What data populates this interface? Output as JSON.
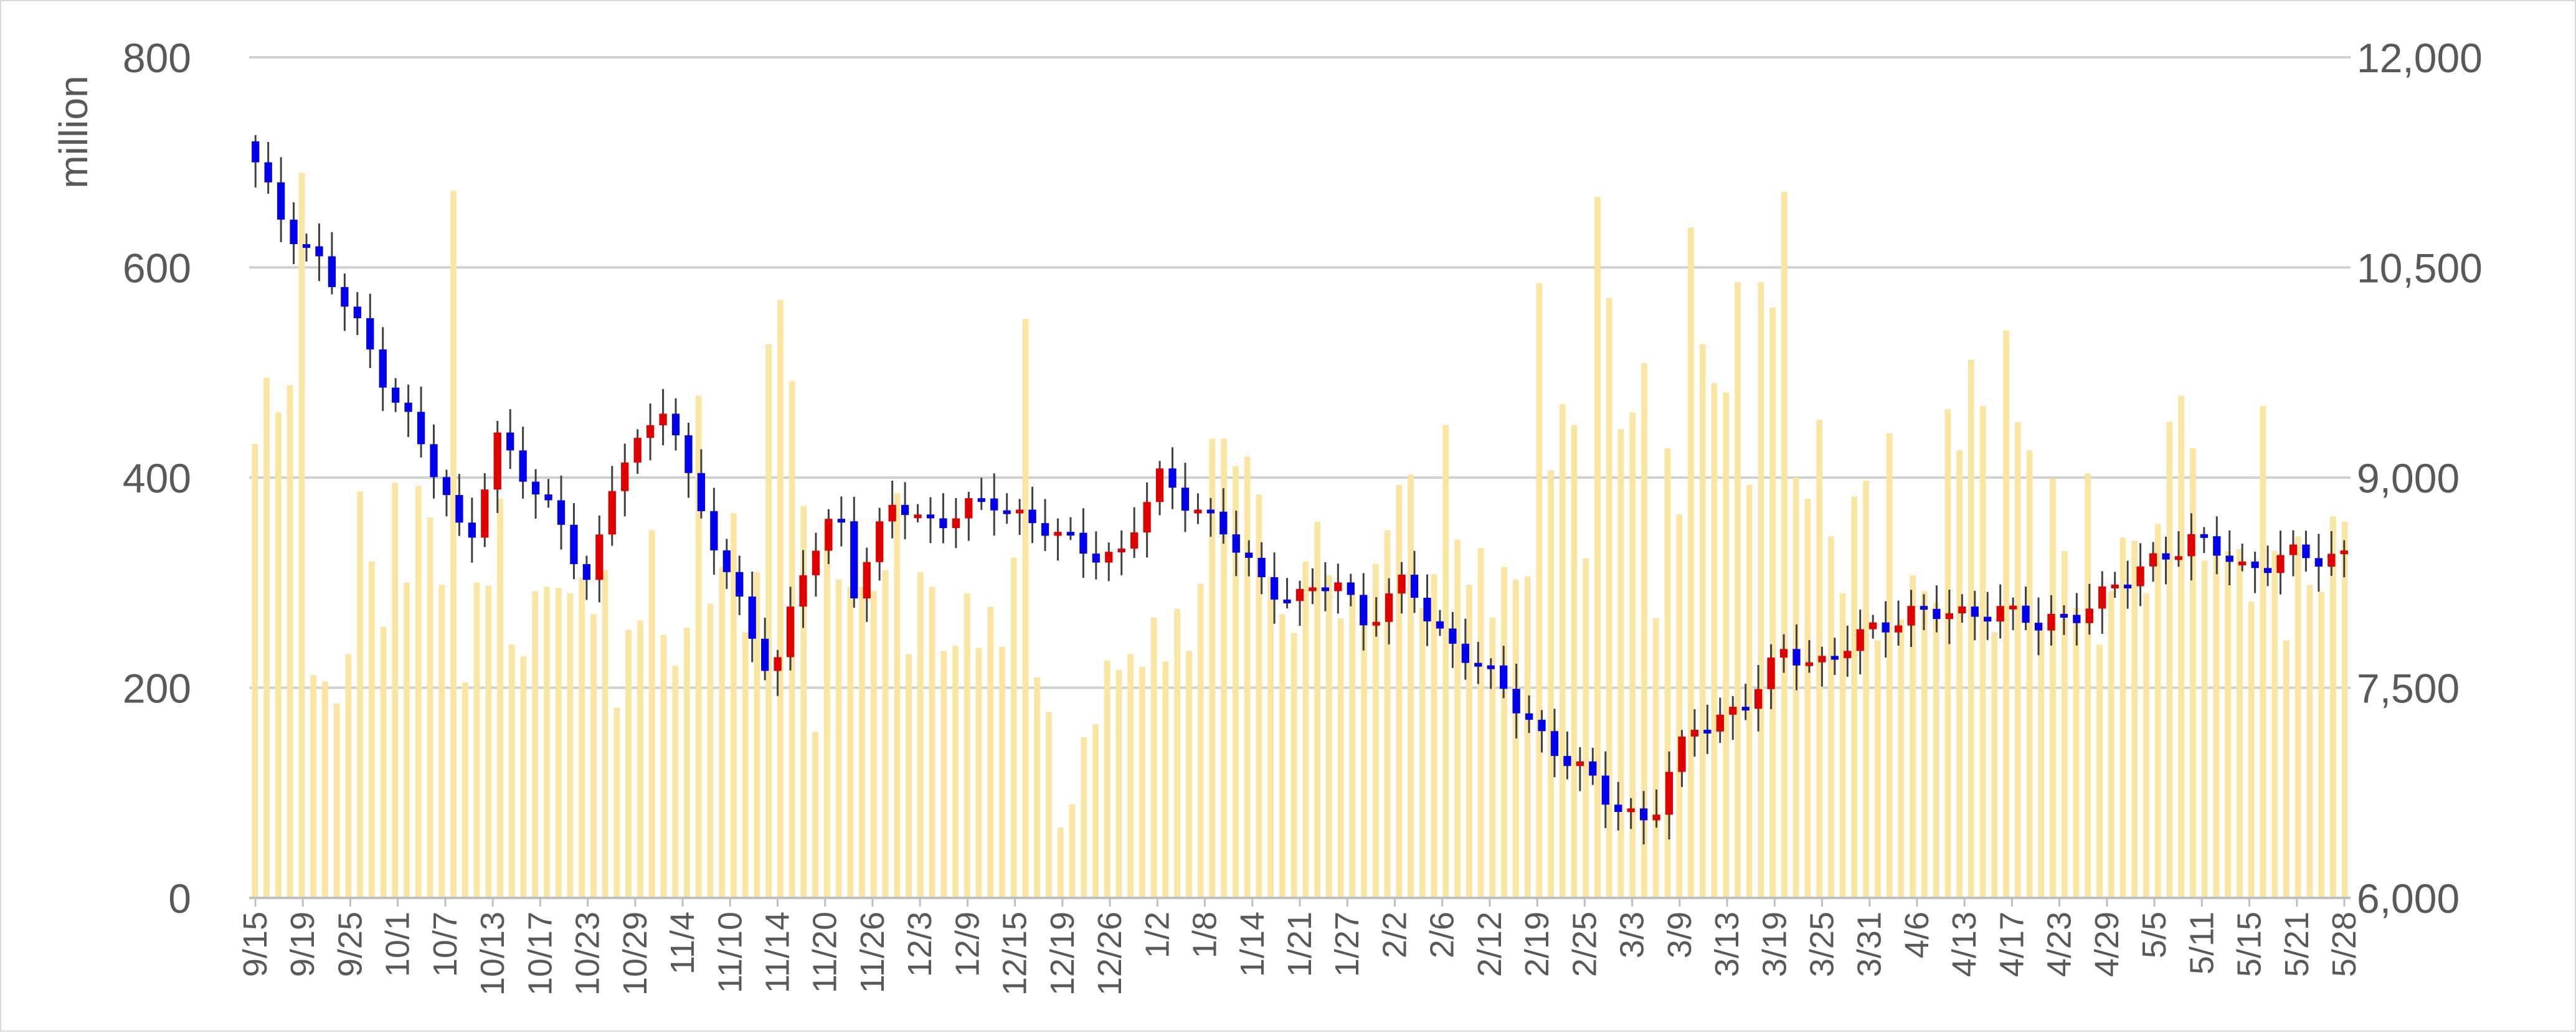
{
  "chart_data": {
    "type": "candlestick+bar",
    "ylabel": "million",
    "left_axis": {
      "min": 0,
      "max": 800,
      "ticks": [
        "0",
        "200",
        "400",
        "600",
        "800"
      ]
    },
    "right_axis": {
      "min": 6000,
      "max": 12000,
      "ticks": [
        "6,000",
        "7,500",
        "9,000",
        "10,500",
        "12,000"
      ]
    },
    "grid": "horizontal",
    "x_tick_labels": [
      "9/15",
      "9/19",
      "9/25",
      "10/1",
      "10/7",
      "10/13",
      "10/17",
      "10/23",
      "10/29",
      "11/4",
      "11/10",
      "11/14",
      "11/20",
      "11/26",
      "12/3",
      "12/9",
      "12/15",
      "12/19",
      "12/26",
      "1/2",
      "1/8",
      "1/14",
      "1/21",
      "1/27",
      "2/2",
      "2/6",
      "2/12",
      "2/19",
      "2/25",
      "3/3",
      "3/9",
      "3/13",
      "3/19",
      "3/25",
      "3/31",
      "4/6",
      "4/13",
      "4/17",
      "4/23",
      "4/29",
      "5/5",
      "5/11",
      "5/15",
      "5/21",
      "5/28"
    ],
    "colors": {
      "volume": "#fbe5a3",
      "up": "#e00000",
      "down": "#0000ee",
      "wick": "#404040",
      "grid": "#d0d0d0",
      "text": "#595959"
    },
    "volume_series_axis": "left",
    "volume": [
      432,
      495,
      462,
      488,
      690,
      212,
      206,
      185,
      232,
      387,
      320,
      258,
      395,
      300,
      392,
      362,
      298,
      673,
      205,
      300,
      297,
      380,
      241,
      230,
      292,
      296,
      295,
      290,
      305,
      270,
      312,
      181,
      255,
      264,
      350,
      250,
      221,
      257,
      478,
      280,
      315,
      366,
      253,
      310,
      527,
      569,
      492,
      373,
      158,
      358,
      303,
      296,
      296,
      292,
      312,
      385,
      232,
      310,
      296,
      235,
      240,
      290,
      238,
      277,
      239,
      324,
      551,
      210,
      177,
      67,
      89,
      153,
      165,
      226,
      217,
      232,
      220,
      267,
      225,
      275,
      235,
      299,
      437,
      437,
      411,
      420,
      384,
      306,
      270,
      252,
      320,
      358,
      307,
      266,
      292,
      265,
      318,
      350,
      393,
      403,
      276,
      308,
      450,
      341,
      298,
      333,
      267,
      315,
      303,
      306,
      585,
      407,
      470,
      450,
      323,
      667,
      571,
      446,
      462,
      509,
      266,
      428,
      365,
      638,
      527,
      490,
      481,
      586,
      393,
      586,
      562,
      672,
      400,
      380,
      455,
      344,
      290,
      382,
      397,
      245,
      442,
      265,
      307,
      292,
      281,
      465,
      426,
      512,
      468,
      253,
      540,
      453,
      426,
      262,
      399,
      330,
      276,
      404,
      241,
      292,
      343,
      340,
      290,
      356,
      453,
      478,
      428,
      321,
      335,
      330,
      332,
      282,
      468,
      330,
      245,
      344,
      298,
      291,
      363,
      358
    ]
  }
}
